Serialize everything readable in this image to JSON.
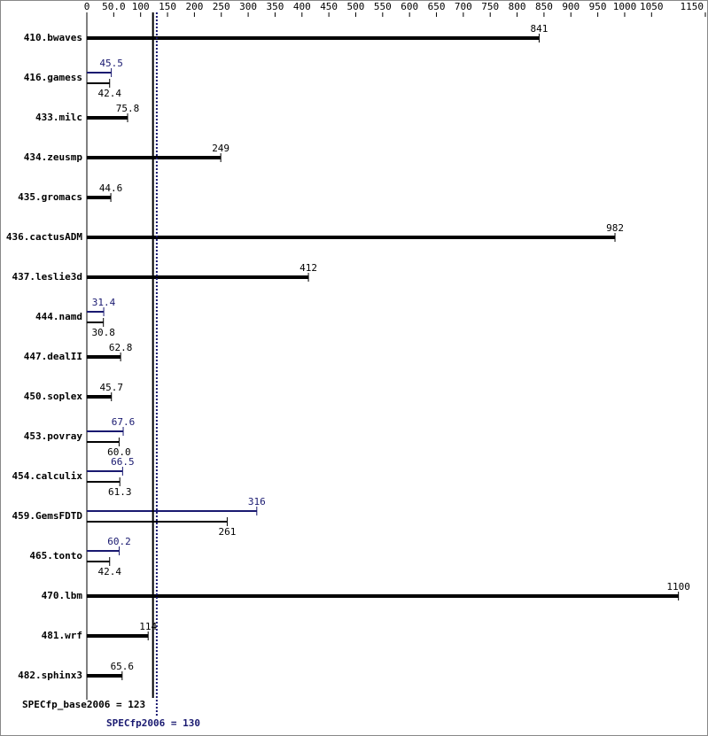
{
  "chart_data": {
    "type": "bar",
    "orientation": "horizontal",
    "categories": [
      "410.bwaves",
      "416.gamess",
      "433.milc",
      "434.zeusmp",
      "435.gromacs",
      "436.cactusADM",
      "437.leslie3d",
      "444.namd",
      "447.dealII",
      "450.soplex",
      "453.povray",
      "454.calculix",
      "459.GemsFDTD",
      "465.tonto",
      "470.lbm",
      "481.wrf",
      "482.sphinx3"
    ],
    "series": [
      {
        "color": "#000000",
        "values": [
          841,
          42.4,
          75.8,
          249,
          44.6,
          982,
          412,
          30.8,
          62.8,
          45.7,
          60,
          61.3,
          261,
          42.4,
          1100,
          114,
          65.6
        ],
        "value_labels": [
          "841",
          "42.4",
          "75.8",
          "249",
          "44.6",
          "982",
          "412",
          "30.8",
          "62.8",
          "45.7",
          "60.0",
          "61.3",
          "261",
          "42.4",
          "1100",
          "114",
          "65.6"
        ]
      },
      {
        "color": "#191970",
        "values": [
          null,
          45.5,
          null,
          null,
          null,
          null,
          null,
          31.4,
          null,
          null,
          67.6,
          66.5,
          316,
          60.2,
          null,
          null,
          null
        ]
      }
    ],
    "xlim": [
      0,
      1150
    ],
    "xticks": [
      0,
      {
        "value": 50,
        "label": "50.0"
      },
      100,
      150,
      200,
      250,
      300,
      350,
      400,
      450,
      500,
      550,
      600,
      650,
      700,
      750,
      800,
      850,
      900,
      950,
      1000,
      1050,
      1150
    ],
    "reference_lines": [
      {
        "label": "SPECfp_base2006 = 123",
        "value": 123,
        "color": "#000000"
      },
      {
        "label": "SPECfp2006 = 130",
        "value": 130,
        "color": "#191970"
      }
    ]
  }
}
